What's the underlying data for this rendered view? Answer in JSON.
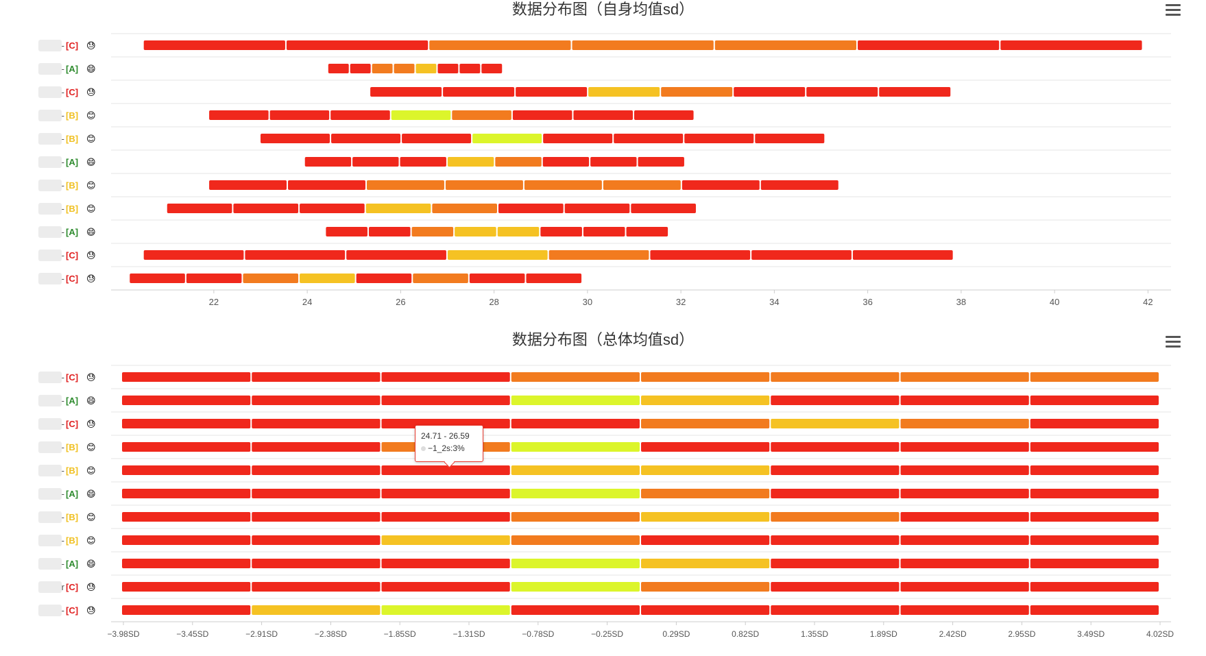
{
  "colors": {
    "red": "#f0281c",
    "orange": "#f27b1f",
    "amber": "#f5c223",
    "lime": "#dcf52b",
    "grade_A": "#2e8b2e",
    "grade_C": "#e02020",
    "grade_B": "#f0c020",
    "axis": "#cccccc",
    "grid": "#e6e6e6"
  },
  "chart_data": [
    {
      "type": "bar",
      "title": "数据分布图（自身均值sd）",
      "xlim": [
        19.8,
        42.2
      ],
      "x_ticks": [
        "22",
        "24",
        "26",
        "28",
        "30",
        "32",
        "34",
        "36",
        "38",
        "40",
        "42"
      ],
      "x_tick_values": [
        22,
        24,
        26,
        28,
        30,
        32,
        34,
        36,
        38,
        40,
        42
      ],
      "rows": [
        {
          "label": "user-",
          "grade": "[C]",
          "face": "😓",
          "start": 20.5,
          "end": 41.9,
          "segments": [
            "red",
            "red",
            "orange",
            "orange",
            "orange",
            "red",
            "red"
          ]
        },
        {
          "label": "user-",
          "grade": "[A]",
          "face": "😄",
          "start": 24.45,
          "end": 28.2,
          "segments": [
            "red",
            "red",
            "orange",
            "orange",
            "amber",
            "red",
            "red",
            "red"
          ]
        },
        {
          "label": "user-",
          "grade": "[C]",
          "face": "😓",
          "start": 25.35,
          "end": 37.8,
          "segments": [
            "red",
            "red",
            "red",
            "amber",
            "orange",
            "red",
            "red",
            "red"
          ]
        },
        {
          "label": "user-",
          "grade": "[B]",
          "face": "😊",
          "start": 21.9,
          "end": 32.3,
          "segments": [
            "red",
            "red",
            "red",
            "lime",
            "orange",
            "red",
            "red",
            "red"
          ]
        },
        {
          "label": "user-",
          "grade": "[B]",
          "face": "😊",
          "start": 23.0,
          "end": 35.1,
          "segments": [
            "red",
            "red",
            "red",
            "lime",
            "red",
            "red",
            "red",
            "red"
          ]
        },
        {
          "label": "user-",
          "grade": "[A]",
          "face": "😄",
          "start": 23.95,
          "end": 32.1,
          "segments": [
            "red",
            "red",
            "red",
            "amber",
            "orange",
            "red",
            "red",
            "red"
          ]
        },
        {
          "label": "user-",
          "grade": "[B]",
          "face": "😊",
          "start": 21.9,
          "end": 35.4,
          "segments": [
            "red",
            "red",
            "orange",
            "orange",
            "orange",
            "orange",
            "red",
            "red"
          ]
        },
        {
          "label": "user-",
          "grade": "[B]",
          "face": "😊",
          "start": 21.0,
          "end": 32.35,
          "segments": [
            "red",
            "red",
            "red",
            "amber",
            "orange",
            "red",
            "red",
            "red"
          ]
        },
        {
          "label": "user-",
          "grade": "[A]",
          "face": "😄",
          "start": 24.4,
          "end": 31.75,
          "segments": [
            "red",
            "red",
            "orange",
            "amber",
            "amber",
            "red",
            "red",
            "red"
          ]
        },
        {
          "label": "user-",
          "grade": "[C]",
          "face": "😓",
          "start": 20.5,
          "end": 37.85,
          "segments": [
            "red",
            "red",
            "red",
            "amber",
            "orange",
            "red",
            "red",
            "red"
          ]
        },
        {
          "label": "user-",
          "grade": "[C]",
          "face": "😓",
          "start": 20.2,
          "end": 29.9,
          "segments": [
            "red",
            "red",
            "orange",
            "amber",
            "red",
            "orange",
            "red",
            "red"
          ]
        }
      ]
    },
    {
      "type": "bar",
      "title": "数据分布图（总体均值sd）",
      "x_ticks": [
        "−3.98SD",
        "−3.45SD",
        "−2.91SD",
        "−2.38SD",
        "−1.85SD",
        "−1.31SD",
        "−0.78SD",
        "−0.25SD",
        "0.29SD",
        "0.82SD",
        "1.35SD",
        "1.89SD",
        "2.42SD",
        "2.95SD",
        "3.49SD",
        "4.02SD"
      ],
      "rows": [
        {
          "label": "user-",
          "grade": "[C]",
          "face": "😓",
          "segments": [
            "red",
            "red",
            "red",
            "orange",
            "orange",
            "orange",
            "orange",
            "orange"
          ]
        },
        {
          "label": "user-",
          "grade": "[A]",
          "face": "😄",
          "segments": [
            "red",
            "red",
            "red",
            "lime",
            "amber",
            "red",
            "red",
            "red"
          ]
        },
        {
          "label": "user-",
          "grade": "[C]",
          "face": "😓",
          "segments": [
            "red",
            "red",
            "red",
            "red",
            "orange",
            "amber",
            "orange",
            "red"
          ]
        },
        {
          "label": "user-",
          "grade": "[B]",
          "face": "😊",
          "segments": [
            "red",
            "red",
            "orange",
            "lime",
            "red",
            "red",
            "red",
            "red"
          ]
        },
        {
          "label": "user-",
          "grade": "[B]",
          "face": "😊",
          "segments": [
            "red",
            "red",
            "red",
            "amber",
            "amber",
            "red",
            "red",
            "red"
          ]
        },
        {
          "label": "user-",
          "grade": "[A]",
          "face": "😄",
          "segments": [
            "red",
            "red",
            "red",
            "lime",
            "orange",
            "red",
            "red",
            "red"
          ]
        },
        {
          "label": "user-",
          "grade": "[B]",
          "face": "😊",
          "segments": [
            "red",
            "red",
            "red",
            "orange",
            "amber",
            "orange",
            "red",
            "red"
          ]
        },
        {
          "label": "user-",
          "grade": "[B]",
          "face": "😊",
          "segments": [
            "red",
            "red",
            "amber",
            "orange",
            "red",
            "red",
            "red",
            "red"
          ]
        },
        {
          "label": "user-",
          "grade": "[A]",
          "face": "😄",
          "segments": [
            "red",
            "red",
            "red",
            "lime",
            "amber",
            "red",
            "red",
            "red"
          ]
        },
        {
          "label": "user",
          "grade": "[C]",
          "face": "😓",
          "segments": [
            "red",
            "red",
            "red",
            "lime",
            "orange",
            "red",
            "red",
            "red"
          ]
        },
        {
          "label": "user-",
          "grade": "[C]",
          "face": "😓",
          "segments": [
            "red",
            "amber",
            "lime",
            "red",
            "red",
            "red",
            "red",
            "red"
          ]
        }
      ],
      "tooltip": {
        "range": "24.71 - 26.59",
        "label": "−1_2s:3%"
      }
    }
  ]
}
